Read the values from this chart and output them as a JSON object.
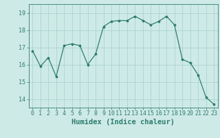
{
  "x": [
    0,
    1,
    2,
    3,
    4,
    5,
    6,
    7,
    8,
    9,
    10,
    11,
    12,
    13,
    14,
    15,
    16,
    17,
    18,
    19,
    20,
    21,
    22,
    23
  ],
  "y": [
    16.8,
    15.9,
    16.4,
    15.3,
    17.1,
    17.2,
    17.1,
    16.0,
    16.6,
    18.2,
    18.5,
    18.55,
    18.55,
    18.8,
    18.55,
    18.3,
    18.5,
    18.8,
    18.3,
    16.3,
    16.1,
    15.4,
    14.1,
    13.7
  ],
  "line_color": "#2e7d6e",
  "marker": ".",
  "marker_size": 3.5,
  "bg_color": "#ceeae7",
  "grid_color": "#aad4d0",
  "xlabel": "Humidex (Indice chaleur)",
  "ylim": [
    13.5,
    19.5
  ],
  "xlim": [
    -0.5,
    23.5
  ],
  "yticks": [
    14,
    15,
    16,
    17,
    18,
    19
  ],
  "xticks": [
    0,
    1,
    2,
    3,
    4,
    5,
    6,
    7,
    8,
    9,
    10,
    11,
    12,
    13,
    14,
    15,
    16,
    17,
    18,
    19,
    20,
    21,
    22,
    23
  ],
  "tick_fontsize": 6.0,
  "xlabel_fontsize": 7.5
}
